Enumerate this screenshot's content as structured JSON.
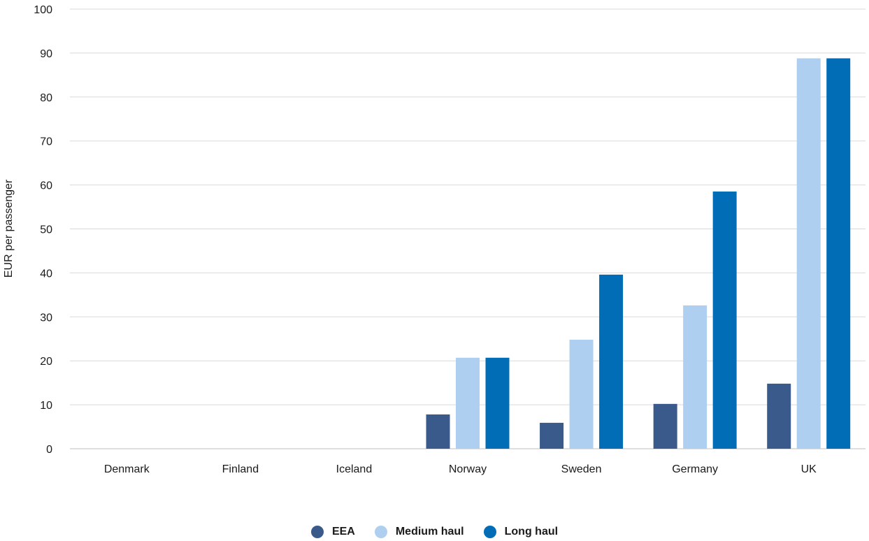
{
  "chart_data": {
    "type": "bar",
    "ylabel": "EUR per passenger",
    "xlabel": "",
    "ylim": [
      0,
      100
    ],
    "yticks": [
      0,
      10,
      20,
      30,
      40,
      50,
      60,
      70,
      80,
      90,
      100
    ],
    "grid": true,
    "legend_position": "bottom-center",
    "categories": [
      "Denmark",
      "Finland",
      "Iceland",
      "Norway",
      "Sweden",
      "Germany",
      "UK"
    ],
    "series": [
      {
        "name": "EEA",
        "color": "#3a5a8c",
        "values": [
          0,
          0,
          0,
          7.8,
          5.9,
          10.2,
          14.8
        ]
      },
      {
        "name": "Medium haul",
        "color": "#aecff0",
        "values": [
          0,
          0,
          0,
          20.7,
          24.8,
          32.6,
          88.8
        ]
      },
      {
        "name": "Long haul",
        "color": "#006db6",
        "values": [
          0,
          0,
          0,
          20.7,
          39.6,
          58.5,
          88.8
        ]
      }
    ]
  }
}
